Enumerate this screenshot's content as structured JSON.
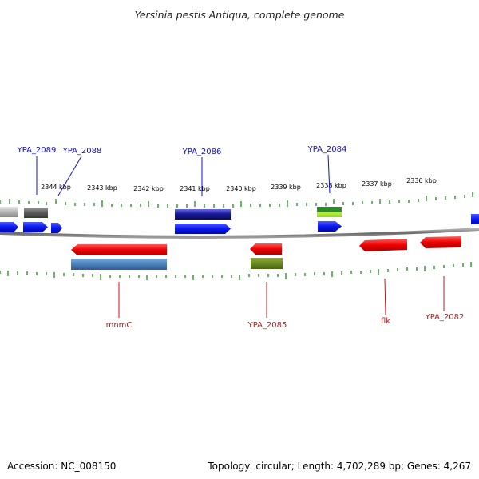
{
  "title": "Yersinia pestis Antiqua, complete genome",
  "footer": {
    "accession": "Accession: NC_008150",
    "stats": "Topology: circular; Length: 4,702,289 bp; Genes: 4,267"
  },
  "colors": {
    "backbone": "#7a7a7a",
    "tick": "#1e8a1e",
    "forward_label": "#1010c8",
    "reverse_label": "#c01818"
  },
  "scale_labels": [
    "2344 kbp",
    "2343 kbp",
    "2342 kbp",
    "2341 kbp",
    "2340 kbp",
    "2339 kbp",
    "2338 kbp",
    "2337 kbp",
    "2336 kbp"
  ],
  "forward_labels": [
    "YPA_2089",
    "YPA_2088",
    "YPA_2086",
    "YPA_2084"
  ],
  "reverse_labels": [
    "mnmC",
    "YPA_2085",
    "flk",
    "YPA_2082"
  ]
}
